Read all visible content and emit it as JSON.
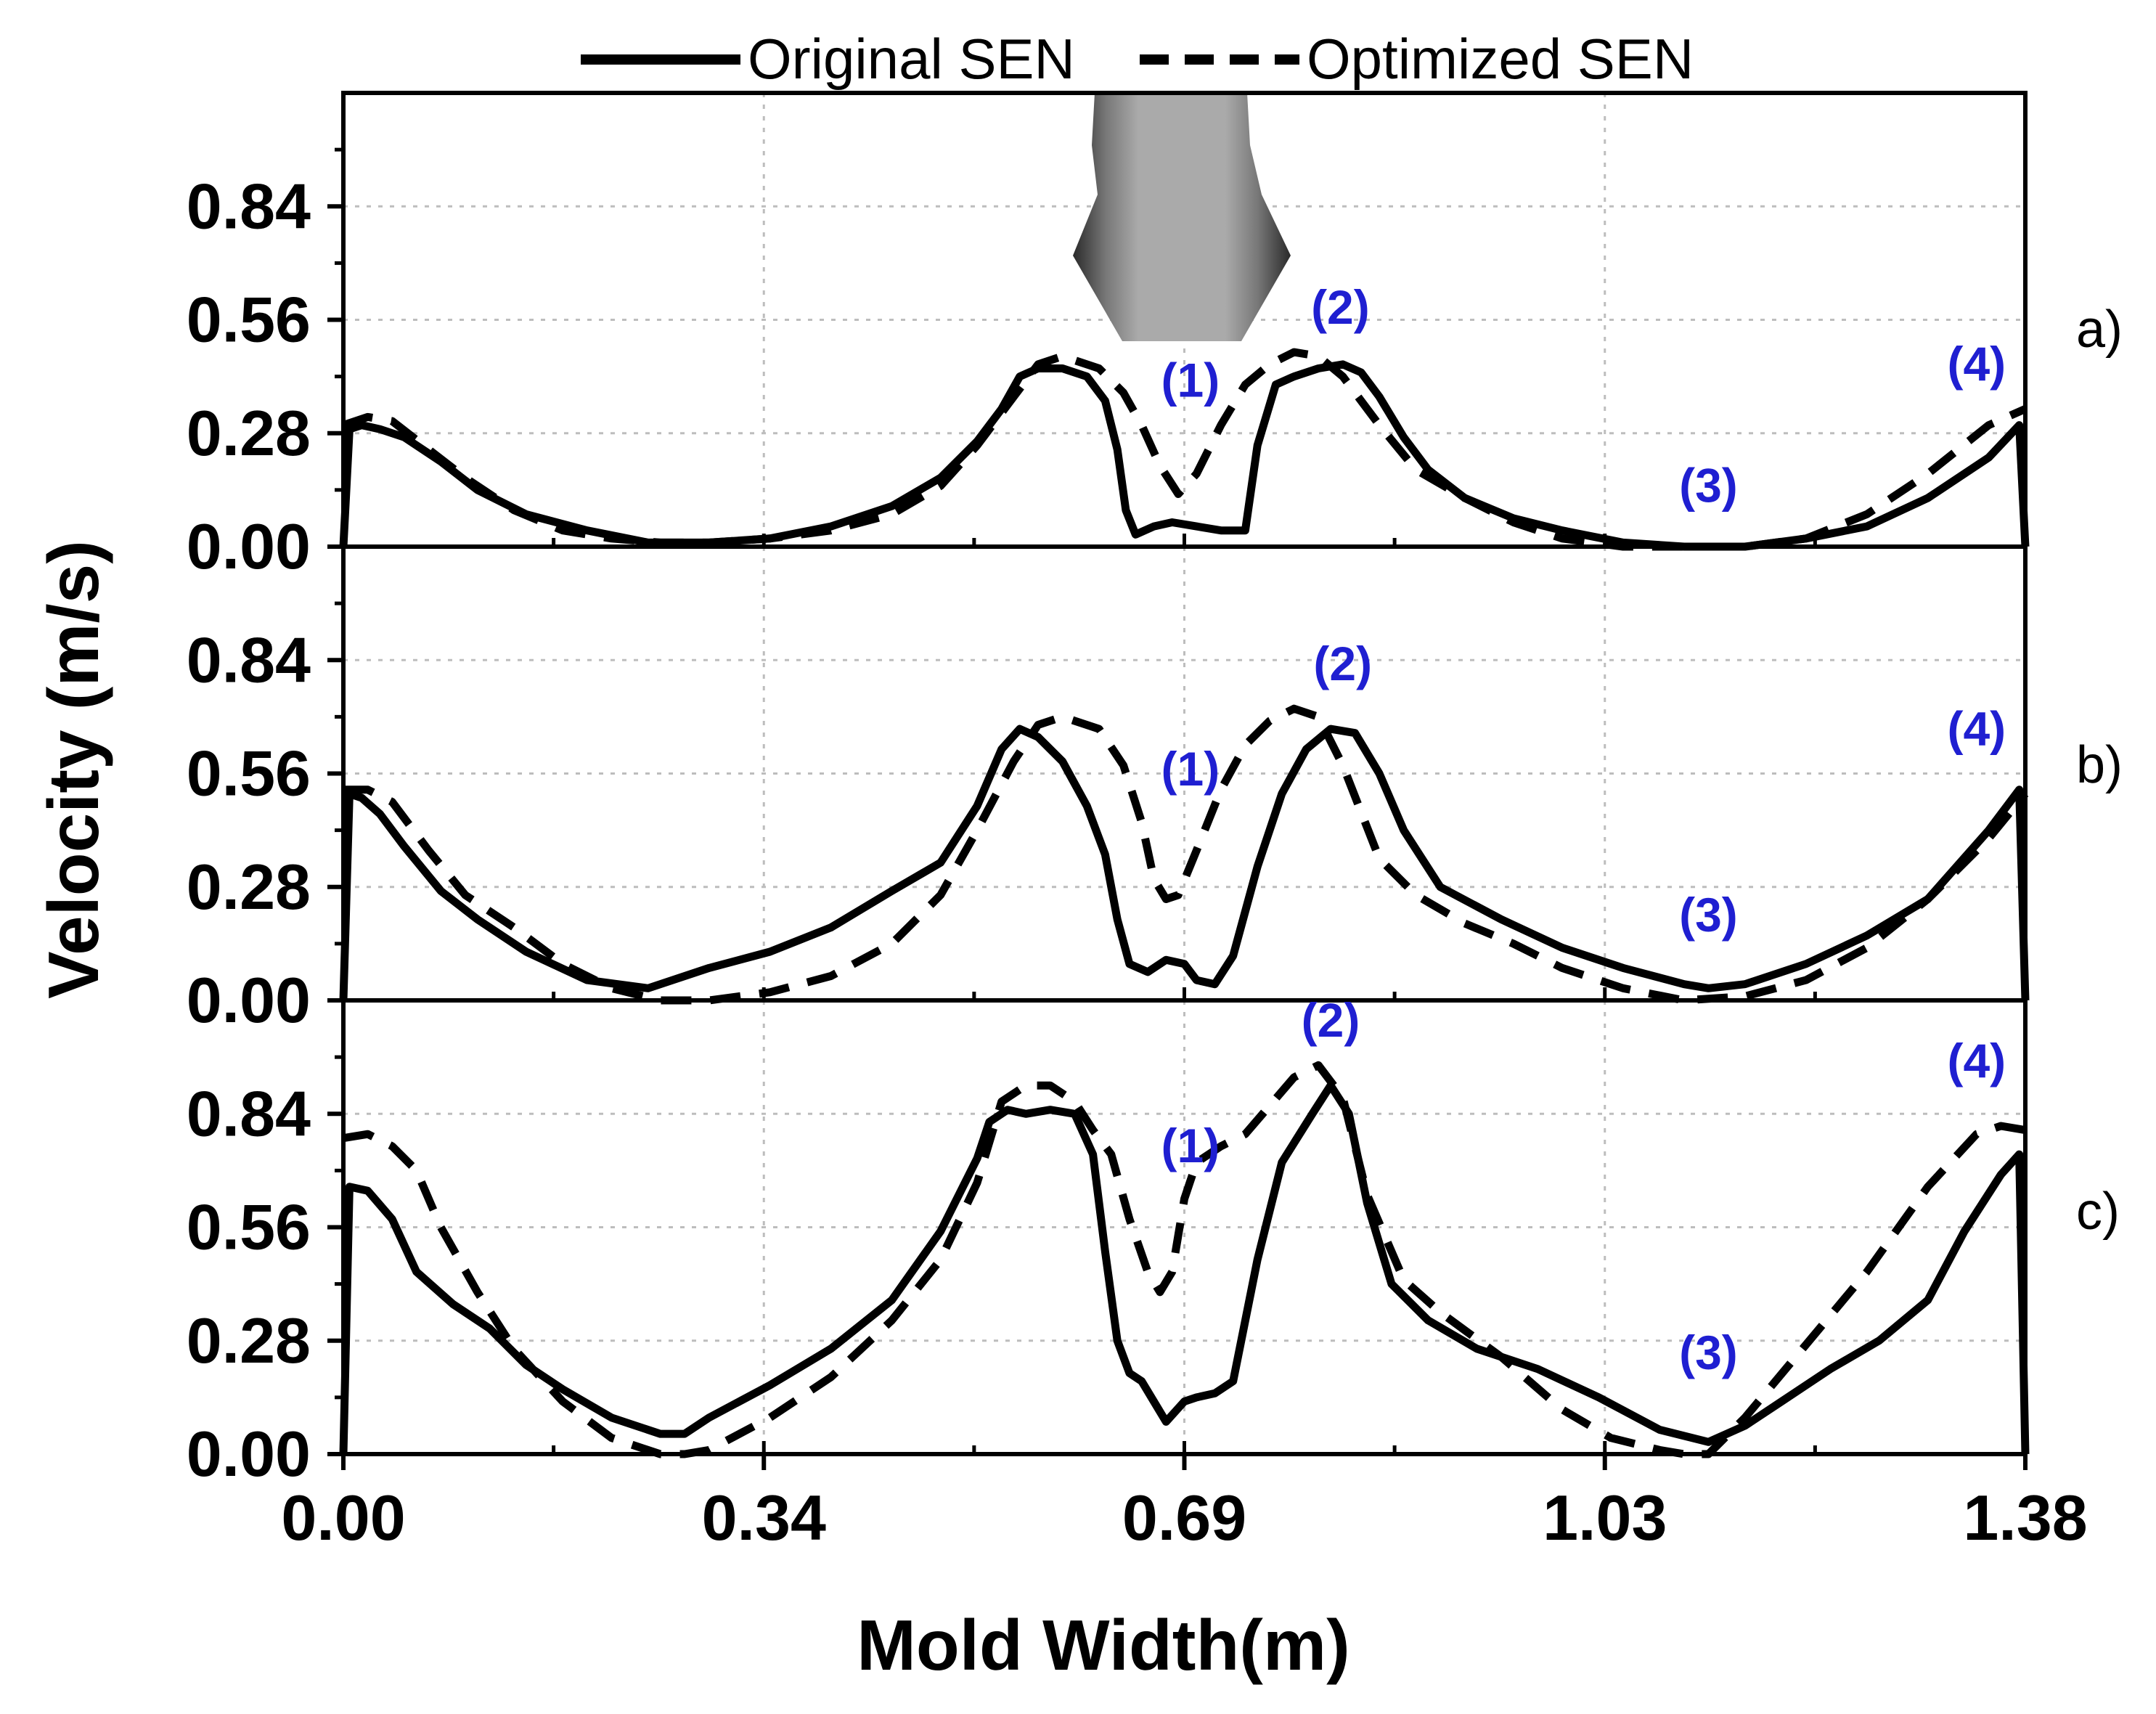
{
  "chart_data": {
    "type": "line",
    "xlabel": "Mold Width(m)",
    "ylabel": "Velocity (m/s)",
    "xlim": [
      0,
      1.38
    ],
    "ylim": [
      0,
      1.12
    ],
    "x_ticks": [
      "0.00",
      "0.34",
      "0.69",
      "1.03",
      "1.38"
    ],
    "x_tick_values": [
      0,
      0.345,
      0.69,
      1.035,
      1.38
    ],
    "y_ticks": [
      "0.00",
      "0.28",
      "0.56",
      "0.84"
    ],
    "y_tick_values": [
      0,
      0.28,
      0.56,
      0.84
    ],
    "legend": [
      {
        "label": "Original SEN",
        "style": "solid"
      },
      {
        "label": "Optimized SEN",
        "style": "dashed"
      }
    ],
    "panels": [
      {
        "label": "a)",
        "annotations": [
          {
            "text": "(1)",
            "x": 0.695,
            "y": 0.37
          },
          {
            "text": "(2)",
            "x": 0.818,
            "y": 0.55
          },
          {
            "text": "(3)",
            "x": 1.12,
            "y": 0.11
          },
          {
            "text": "(4)",
            "x": 1.34,
            "y": 0.41
          }
        ],
        "series": [
          {
            "name": "Original SEN",
            "x": [
              0.0,
              0.005,
              0.015,
              0.03,
              0.05,
              0.08,
              0.11,
              0.15,
              0.2,
              0.25,
              0.3,
              0.35,
              0.4,
              0.45,
              0.49,
              0.52,
              0.54,
              0.555,
              0.57,
              0.59,
              0.61,
              0.625,
              0.635,
              0.642,
              0.65,
              0.665,
              0.68,
              0.7,
              0.72,
              0.73,
              0.74,
              0.75,
              0.765,
              0.78,
              0.8,
              0.82,
              0.835,
              0.85,
              0.87,
              0.89,
              0.92,
              0.96,
              1.0,
              1.05,
              1.1,
              1.15,
              1.2,
              1.25,
              1.3,
              1.35,
              1.375,
              1.38
            ],
            "y": [
              0.0,
              0.29,
              0.3,
              0.29,
              0.27,
              0.21,
              0.14,
              0.08,
              0.04,
              0.01,
              0.01,
              0.02,
              0.05,
              0.1,
              0.17,
              0.26,
              0.34,
              0.42,
              0.44,
              0.44,
              0.42,
              0.36,
              0.24,
              0.09,
              0.03,
              0.05,
              0.06,
              0.05,
              0.04,
              0.04,
              0.04,
              0.25,
              0.4,
              0.42,
              0.44,
              0.45,
              0.43,
              0.37,
              0.27,
              0.19,
              0.12,
              0.07,
              0.04,
              0.01,
              0.0,
              0.0,
              0.02,
              0.05,
              0.12,
              0.22,
              0.3,
              0.0
            ]
          },
          {
            "name": "Optimized SEN",
            "x": [
              0.0,
              0.02,
              0.04,
              0.07,
              0.1,
              0.14,
              0.18,
              0.22,
              0.26,
              0.3,
              0.35,
              0.4,
              0.45,
              0.49,
              0.52,
              0.55,
              0.57,
              0.59,
              0.62,
              0.64,
              0.655,
              0.67,
              0.685,
              0.7,
              0.72,
              0.74,
              0.76,
              0.78,
              0.8,
              0.82,
              0.85,
              0.88,
              0.92,
              0.96,
              1.0,
              1.05,
              1.1,
              1.15,
              1.2,
              1.25,
              1.3,
              1.35,
              1.38
            ],
            "y": [
              0.3,
              0.32,
              0.31,
              0.24,
              0.17,
              0.09,
              0.04,
              0.02,
              0.01,
              0.01,
              0.02,
              0.04,
              0.08,
              0.15,
              0.25,
              0.37,
              0.45,
              0.47,
              0.44,
              0.38,
              0.3,
              0.2,
              0.13,
              0.18,
              0.3,
              0.4,
              0.45,
              0.48,
              0.47,
              0.42,
              0.3,
              0.19,
              0.12,
              0.06,
              0.02,
              0.0,
              0.0,
              0.0,
              0.02,
              0.08,
              0.18,
              0.3,
              0.34
            ]
          }
        ]
      },
      {
        "label": "b)",
        "annotations": [
          {
            "text": "(1)",
            "x": 0.695,
            "y": 0.53
          },
          {
            "text": "(2)",
            "x": 0.82,
            "y": 0.79
          },
          {
            "text": "(3)",
            "x": 1.12,
            "y": 0.17
          },
          {
            "text": "(4)",
            "x": 1.34,
            "y": 0.63
          }
        ],
        "series": [
          {
            "name": "Original SEN",
            "x": [
              0.0,
              0.005,
              0.015,
              0.03,
              0.05,
              0.08,
              0.11,
              0.15,
              0.2,
              0.25,
              0.3,
              0.35,
              0.4,
              0.45,
              0.49,
              0.52,
              0.54,
              0.555,
              0.57,
              0.59,
              0.61,
              0.625,
              0.635,
              0.645,
              0.66,
              0.675,
              0.69,
              0.7,
              0.715,
              0.73,
              0.75,
              0.77,
              0.79,
              0.81,
              0.83,
              0.85,
              0.87,
              0.9,
              0.95,
              1.0,
              1.05,
              1.1,
              1.12,
              1.15,
              1.2,
              1.25,
              1.3,
              1.35,
              1.375,
              1.38
            ],
            "y": [
              0.0,
              0.51,
              0.5,
              0.46,
              0.38,
              0.27,
              0.2,
              0.12,
              0.05,
              0.03,
              0.08,
              0.12,
              0.18,
              0.27,
              0.34,
              0.48,
              0.62,
              0.67,
              0.65,
              0.59,
              0.48,
              0.36,
              0.2,
              0.09,
              0.07,
              0.1,
              0.09,
              0.05,
              0.04,
              0.11,
              0.33,
              0.51,
              0.62,
              0.67,
              0.66,
              0.56,
              0.42,
              0.28,
              0.2,
              0.13,
              0.08,
              0.04,
              0.03,
              0.04,
              0.09,
              0.16,
              0.25,
              0.42,
              0.52,
              0.0
            ]
          },
          {
            "name": "Optimized SEN",
            "x": [
              0.0,
              0.02,
              0.04,
              0.07,
              0.1,
              0.14,
              0.18,
              0.22,
              0.26,
              0.3,
              0.35,
              0.4,
              0.45,
              0.49,
              0.52,
              0.55,
              0.57,
              0.59,
              0.62,
              0.64,
              0.655,
              0.665,
              0.675,
              0.685,
              0.7,
              0.72,
              0.74,
              0.76,
              0.78,
              0.8,
              0.82,
              0.85,
              0.88,
              0.92,
              0.96,
              1.0,
              1.05,
              1.1,
              1.15,
              1.2,
              1.25,
              1.3,
              1.35,
              1.38
            ],
            "y": [
              0.52,
              0.52,
              0.49,
              0.37,
              0.26,
              0.18,
              0.09,
              0.03,
              0.0,
              0.0,
              0.02,
              0.06,
              0.14,
              0.26,
              0.42,
              0.59,
              0.68,
              0.7,
              0.67,
              0.58,
              0.44,
              0.3,
              0.25,
              0.26,
              0.37,
              0.52,
              0.63,
              0.69,
              0.72,
              0.7,
              0.58,
              0.35,
              0.26,
              0.19,
              0.14,
              0.08,
              0.03,
              0.0,
              0.01,
              0.05,
              0.13,
              0.25,
              0.4,
              0.51
            ]
          }
        ]
      },
      {
        "label": "c)",
        "annotations": [
          {
            "text": "(1)",
            "x": 0.695,
            "y": 0.72
          },
          {
            "text": "(2)",
            "x": 0.81,
            "y": 1.03
          },
          {
            "text": "(3)",
            "x": 1.12,
            "y": 0.21
          },
          {
            "text": "(4)",
            "x": 1.34,
            "y": 0.93
          }
        ],
        "series": [
          {
            "name": "Original SEN",
            "x": [
              0.0,
              0.005,
              0.02,
              0.04,
              0.06,
              0.09,
              0.12,
              0.15,
              0.18,
              0.22,
              0.26,
              0.28,
              0.3,
              0.35,
              0.4,
              0.45,
              0.49,
              0.52,
              0.53,
              0.545,
              0.56,
              0.58,
              0.6,
              0.615,
              0.625,
              0.635,
              0.645,
              0.655,
              0.665,
              0.675,
              0.69,
              0.7,
              0.715,
              0.73,
              0.75,
              0.77,
              0.795,
              0.81,
              0.825,
              0.84,
              0.86,
              0.89,
              0.93,
              0.98,
              1.03,
              1.08,
              1.12,
              1.15,
              1.18,
              1.22,
              1.26,
              1.3,
              1.33,
              1.36,
              1.375,
              1.38
            ],
            "y": [
              0.0,
              0.66,
              0.65,
              0.58,
              0.45,
              0.37,
              0.31,
              0.22,
              0.16,
              0.09,
              0.05,
              0.05,
              0.09,
              0.17,
              0.26,
              0.38,
              0.55,
              0.73,
              0.82,
              0.85,
              0.84,
              0.85,
              0.84,
              0.74,
              0.5,
              0.28,
              0.2,
              0.18,
              0.13,
              0.08,
              0.13,
              0.14,
              0.15,
              0.18,
              0.48,
              0.72,
              0.84,
              0.91,
              0.84,
              0.62,
              0.42,
              0.33,
              0.26,
              0.21,
              0.14,
              0.06,
              0.03,
              0.07,
              0.13,
              0.21,
              0.28,
              0.38,
              0.55,
              0.69,
              0.74,
              0.0
            ]
          },
          {
            "name": "Optimized SEN",
            "x": [
              0.0,
              0.02,
              0.04,
              0.06,
              0.08,
              0.11,
              0.14,
              0.18,
              0.22,
              0.26,
              0.28,
              0.3,
              0.35,
              0.4,
              0.45,
              0.49,
              0.52,
              0.54,
              0.56,
              0.58,
              0.6,
              0.615,
              0.63,
              0.645,
              0.66,
              0.67,
              0.68,
              0.69,
              0.7,
              0.72,
              0.74,
              0.76,
              0.78,
              0.8,
              0.82,
              0.84,
              0.87,
              0.9,
              0.95,
              1.0,
              1.04,
              1.08,
              1.1,
              1.12,
              1.15,
              1.2,
              1.25,
              1.3,
              1.34,
              1.36,
              1.38
            ],
            "y": [
              0.78,
              0.79,
              0.76,
              0.7,
              0.56,
              0.4,
              0.26,
              0.13,
              0.04,
              0.0,
              0.0,
              0.01,
              0.09,
              0.19,
              0.33,
              0.48,
              0.67,
              0.87,
              0.91,
              0.91,
              0.87,
              0.8,
              0.74,
              0.58,
              0.45,
              0.4,
              0.45,
              0.63,
              0.72,
              0.76,
              0.79,
              0.86,
              0.93,
              0.96,
              0.88,
              0.64,
              0.43,
              0.35,
              0.24,
              0.11,
              0.04,
              0.01,
              0.0,
              0.0,
              0.09,
              0.27,
              0.45,
              0.66,
              0.79,
              0.81,
              0.8
            ]
          }
        ]
      }
    ]
  },
  "nozzle_label": "SEN nozzle illustration"
}
